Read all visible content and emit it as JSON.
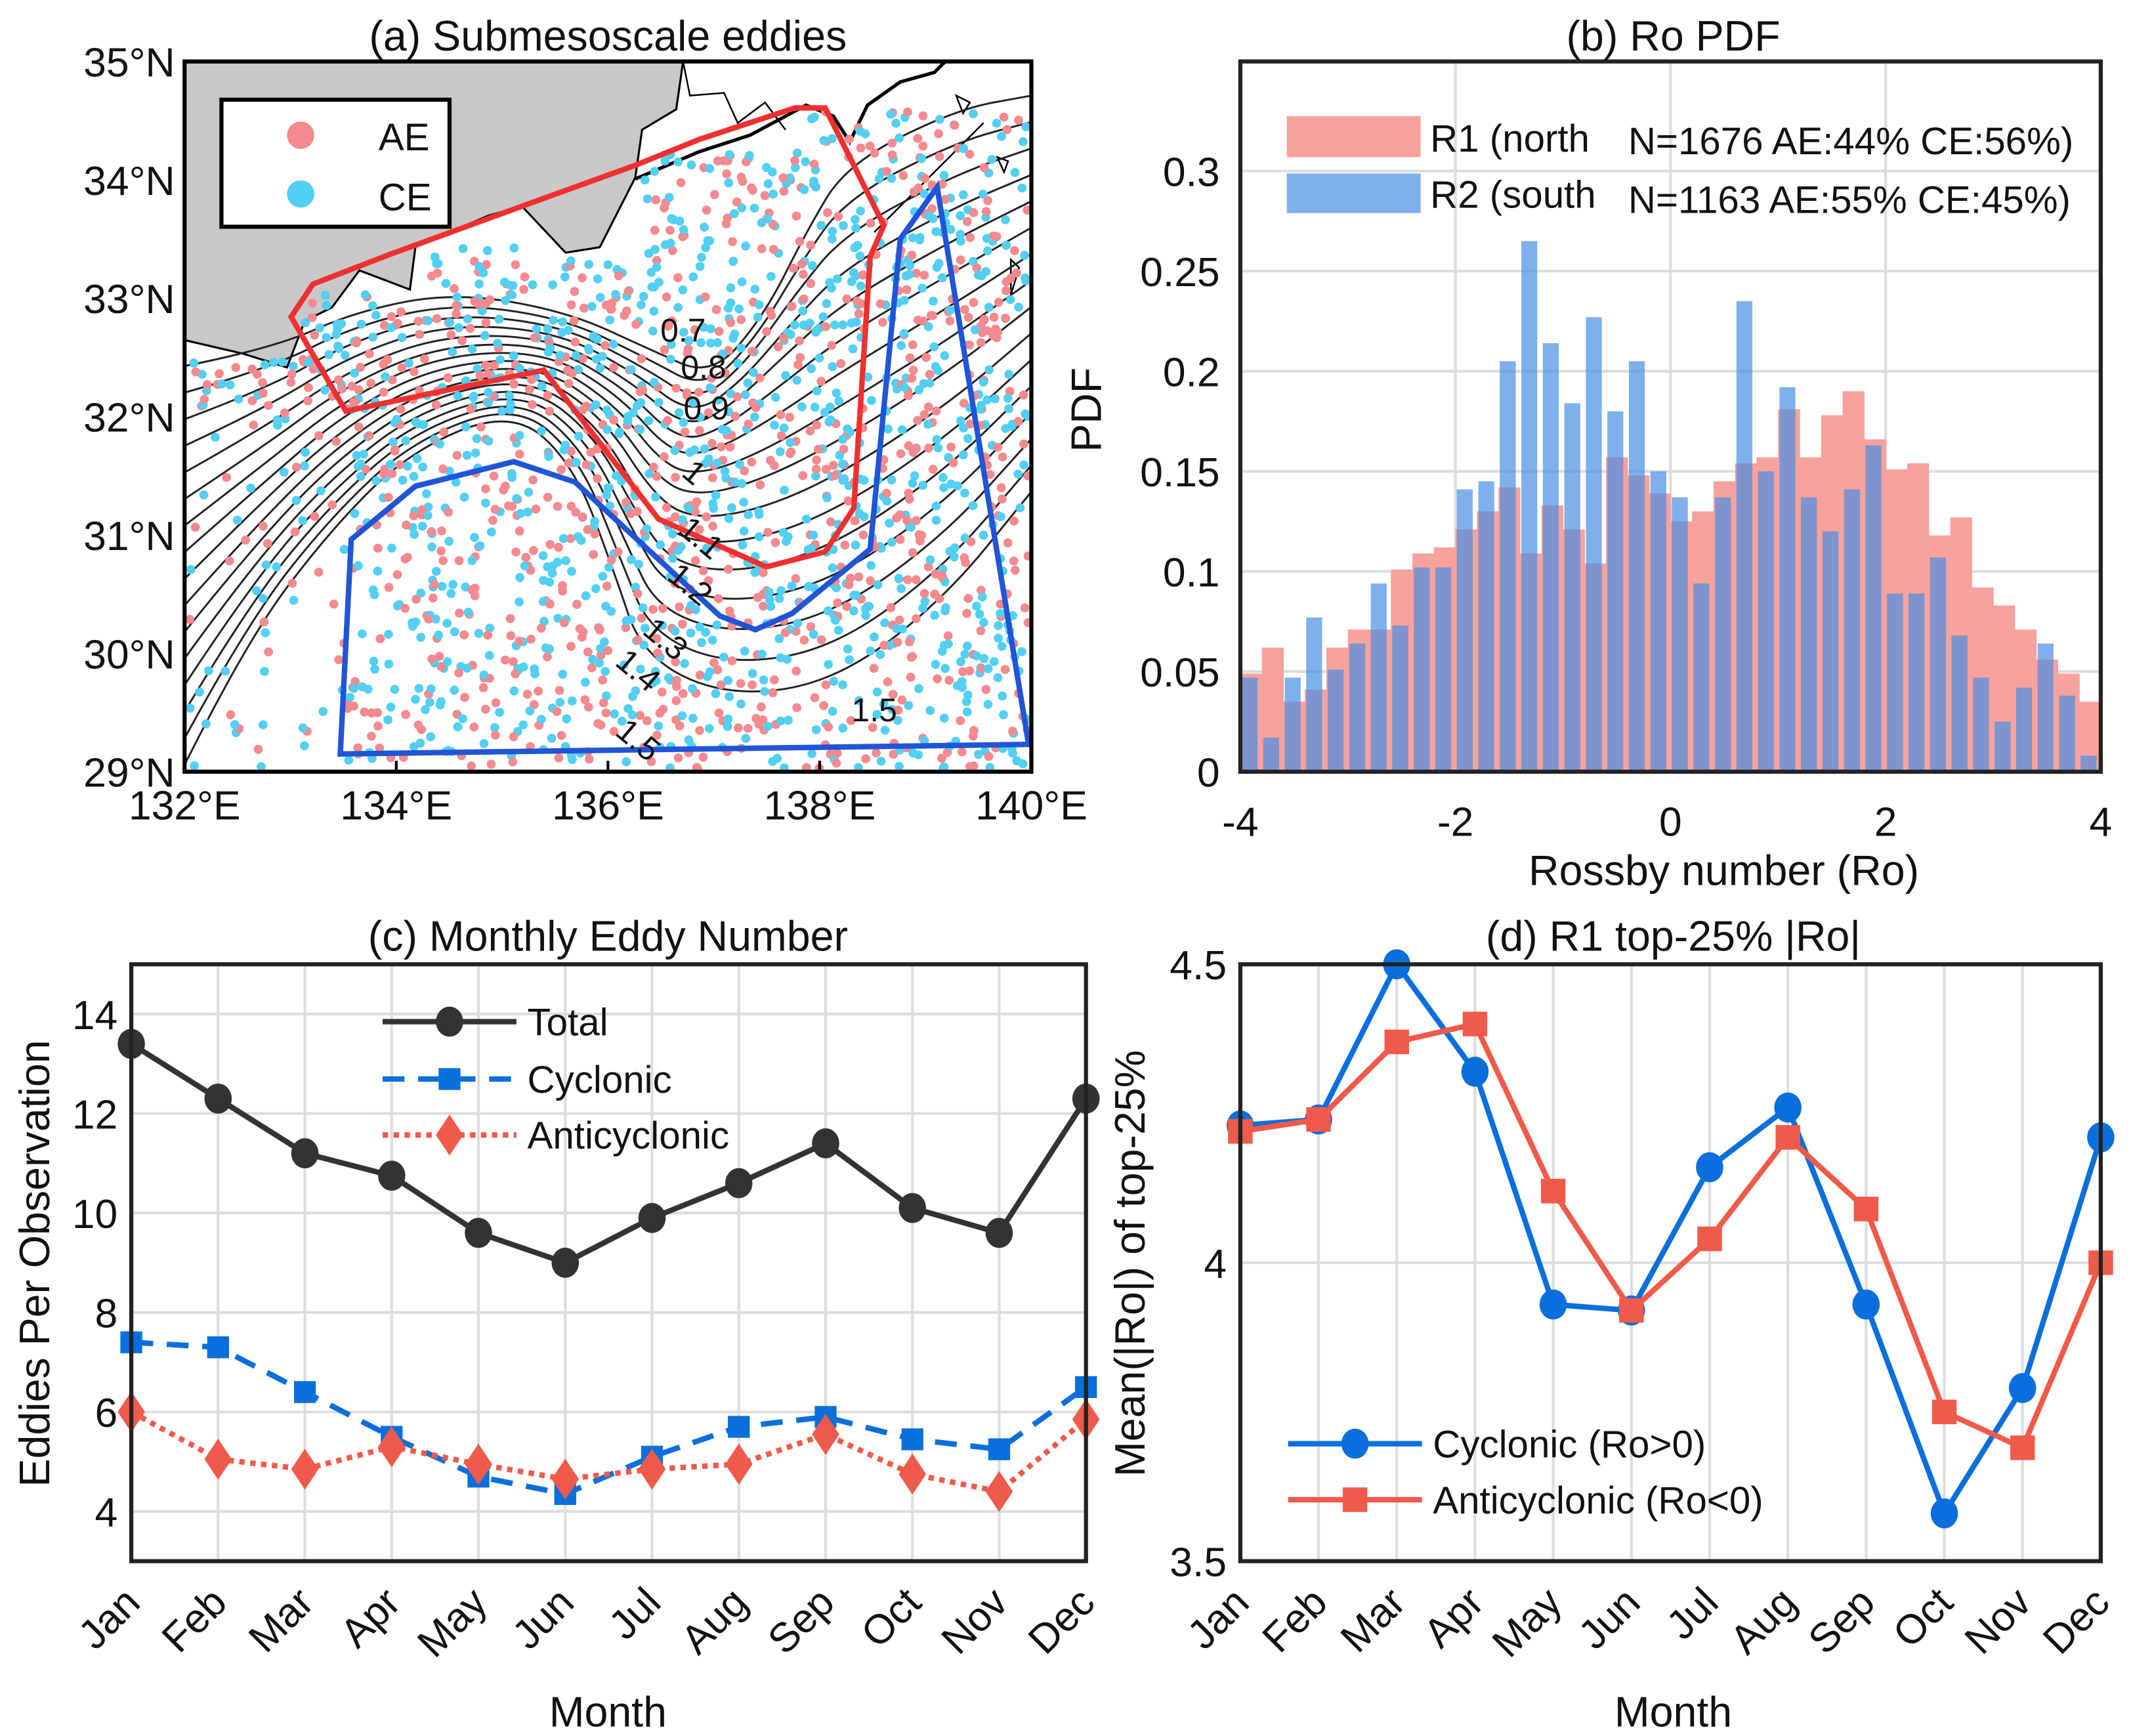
{
  "chart_data": [
    {
      "type": "scatter",
      "title": "(a) Submesoscale eddies",
      "xticks": [
        "132°E",
        "134°E",
        "136°E",
        "138°E",
        "140°E"
      ],
      "yticks": [
        "35°N",
        "34°N",
        "33°N",
        "32°N",
        "31°N",
        "30°N",
        "29°N"
      ],
      "xlim": [
        132,
        140
      ],
      "ylim": [
        29,
        35
      ],
      "legend": [
        {
          "label": "AE",
          "color": "#f4898e"
        },
        {
          "label": "CE",
          "color": "#52cff2"
        }
      ],
      "legend_position": "top-left",
      "contour_labels": [
        "0.7",
        "0.8",
        "0.9",
        "1",
        "1.1",
        "1.2",
        "1.3",
        "1.4",
        "1.5",
        "1.5"
      ],
      "regions": [
        {
          "name": "R1",
          "color": "#f03030"
        },
        {
          "name": "R2",
          "color": "#1f55d6"
        }
      ]
    },
    {
      "type": "bar",
      "title": "(b) Ro PDF",
      "xlabel": "Rossby number (Ro)",
      "ylabel": "PDF",
      "xlim": [
        -4,
        4
      ],
      "ylim": [
        0,
        0.355
      ],
      "xticks": [
        "-4",
        "-2",
        "0",
        "2",
        "4"
      ],
      "yticks": [
        "0",
        "0.05",
        "0.1",
        "0.15",
        "0.2",
        "0.25",
        "0.3"
      ],
      "bin_width": 0.2,
      "legend_position": "top",
      "series": [
        {
          "name": "R1 (north",
          "stats": "N=1676 AE:44% CE:56%)",
          "color": "#f7a29c",
          "values": [
            0.049,
            0.062,
            0.035,
            0.041,
            0.062,
            0.071,
            0.071,
            0.101,
            0.109,
            0.112,
            0.121,
            0.13,
            0.142,
            0.109,
            0.133,
            0.121,
            0.104,
            0.157,
            0.148,
            0.139,
            0.125,
            0.13,
            0.145,
            0.154,
            0.157,
            0.181,
            0.157,
            0.178,
            0.19,
            0.166,
            0.151,
            0.154,
            0.118,
            0.127,
            0.092,
            0.083,
            0.071,
            0.056,
            0.049,
            0.035
          ]
        },
        {
          "name": "R2 (south",
          "stats": "N=1163 AE:55% CE:45%)",
          "color": "#4a8fe3",
          "values": [
            0.047,
            0.017,
            0.047,
            0.077,
            0.051,
            0.064,
            0.094,
            0.073,
            0.102,
            0.102,
            0.141,
            0.145,
            0.205,
            0.265,
            0.214,
            0.184,
            0.227,
            0.18,
            0.205,
            0.15,
            0.137,
            0.094,
            0.137,
            0.235,
            0.15,
            0.192,
            0.137,
            0.12,
            0.141,
            0.163,
            0.089,
            0.089,
            0.107,
            0.068,
            0.047,
            0.025,
            0.042,
            0.064,
            0.038,
            0.008
          ]
        }
      ]
    },
    {
      "type": "line",
      "title": "(c) Monthly Eddy Number",
      "xlabel": "Month",
      "ylabel": "Eddies Per Observation",
      "categories": [
        "Jan",
        "Feb",
        "Mar",
        "Apr",
        "May",
        "Jun",
        "Jul",
        "Aug",
        "Sep",
        "Oct",
        "Nov",
        "Dec"
      ],
      "ylim": [
        3,
        15
      ],
      "yticks": [
        "4",
        "6",
        "8",
        "10",
        "12",
        "14"
      ],
      "legend_position": "top-center",
      "series": [
        {
          "name": "Total",
          "color": "#333333",
          "values": [
            13.4,
            12.3,
            11.2,
            10.75,
            9.6,
            9.0,
            9.9,
            10.6,
            11.4,
            10.1,
            9.6,
            12.3
          ]
        },
        {
          "name": "Cyclonic",
          "color": "#0a6fdc",
          "values": [
            7.4,
            7.3,
            6.4,
            5.5,
            4.7,
            4.35,
            5.1,
            5.7,
            5.9,
            5.45,
            5.25,
            6.5
          ]
        },
        {
          "name": "Anticyclonic",
          "color": "#f05a4a",
          "values": [
            6.0,
            5.05,
            4.85,
            5.3,
            4.95,
            4.65,
            4.85,
            4.95,
            5.55,
            4.75,
            4.4,
            5.85
          ]
        }
      ]
    },
    {
      "type": "line",
      "title": "(d) R1 top-25% |Ro|",
      "xlabel": "Month",
      "ylabel": "Mean(|Ro|) of top-25%",
      "categories": [
        "Jan",
        "Feb",
        "Mar",
        "Apr",
        "May",
        "Jun",
        "Jul",
        "Aug",
        "Sep",
        "Oct",
        "Nov",
        "Dec"
      ],
      "ylim": [
        3.5,
        4.5
      ],
      "yticks": [
        "3.5",
        "4",
        "4.5"
      ],
      "legend_position": "bottom-left",
      "series": [
        {
          "name": "Cyclonic (Ro>0)",
          "color": "#0a6fdc",
          "values": [
            4.23,
            4.24,
            4.5,
            4.32,
            3.93,
            3.92,
            4.16,
            4.26,
            3.93,
            3.58,
            3.79,
            4.21
          ]
        },
        {
          "name": "Anticyclonic (Ro<0)",
          "color": "#f05a4a",
          "values": [
            4.22,
            4.24,
            4.37,
            4.4,
            4.12,
            3.92,
            4.04,
            4.21,
            4.09,
            3.75,
            3.69,
            4.0
          ]
        }
      ]
    }
  ]
}
